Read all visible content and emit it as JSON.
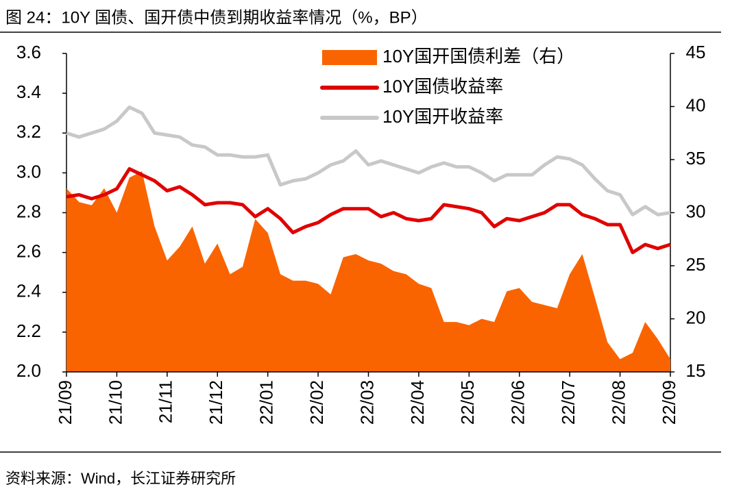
{
  "chart_data": {
    "type": "area-line",
    "title": "图 24：10Y 国债、国开债中债到期收益率情况（%，BP）",
    "source": "资料来源：Wind，长江证券研究所",
    "categories": [
      "21/09",
      null,
      null,
      null,
      "21/10",
      null,
      null,
      null,
      "21/11",
      null,
      null,
      null,
      "21/12",
      null,
      null,
      null,
      "22/01",
      null,
      null,
      null,
      "22/02",
      null,
      null,
      null,
      "22/03",
      null,
      null,
      null,
      "22/04",
      null,
      null,
      null,
      "22/05",
      null,
      null,
      null,
      "22/06",
      null,
      null,
      null,
      "22/07",
      null,
      null,
      null,
      "22/08",
      null,
      null,
      null,
      "22/09"
    ],
    "series": [
      {
        "name": "10Y国开国债利差（右）",
        "type": "area",
        "axis": "y2",
        "color": "#f96400",
        "values": [
          32.3,
          31.0,
          30.7,
          32.3,
          30.0,
          33.3,
          33.9,
          28.7,
          25.5,
          26.8,
          28.7,
          25.2,
          27.1,
          24.2,
          24.9,
          29.4,
          28.1,
          24.2,
          23.6,
          23.6,
          23.3,
          22.3,
          25.8,
          26.1,
          25.5,
          25.2,
          24.5,
          24.2,
          23.3,
          22.9,
          19.7,
          19.7,
          19.4,
          20.0,
          19.7,
          22.6,
          22.9,
          21.6,
          21.3,
          21.0,
          24.2,
          26.1,
          22.0,
          17.8,
          16.2,
          16.8,
          19.7,
          18.1,
          16.2
        ]
      },
      {
        "name": "10Y国债收益率",
        "type": "line",
        "color": "#e00000",
        "values": [
          2.88,
          2.89,
          2.87,
          2.89,
          2.92,
          3.02,
          2.99,
          2.96,
          2.91,
          2.93,
          2.89,
          2.84,
          2.85,
          2.85,
          2.84,
          2.78,
          2.82,
          2.77,
          2.7,
          2.73,
          2.75,
          2.79,
          2.82,
          2.82,
          2.82,
          2.78,
          2.8,
          2.77,
          2.76,
          2.77,
          2.84,
          2.83,
          2.82,
          2.8,
          2.73,
          2.77,
          2.76,
          2.78,
          2.8,
          2.84,
          2.84,
          2.79,
          2.77,
          2.74,
          2.74,
          2.6,
          2.64,
          2.62,
          2.64
        ]
      },
      {
        "name": "10Y国开收益率",
        "type": "line",
        "color": "#c8c8c8",
        "values": [
          3.2,
          3.18,
          3.2,
          3.22,
          3.26,
          3.33,
          3.3,
          3.2,
          3.19,
          3.18,
          3.14,
          3.13,
          3.09,
          3.09,
          3.08,
          3.08,
          3.09,
          2.94,
          2.96,
          2.97,
          3.0,
          3.04,
          3.06,
          3.11,
          3.04,
          3.06,
          3.04,
          3.02,
          3.0,
          3.03,
          3.05,
          3.03,
          3.03,
          3.0,
          2.96,
          2.99,
          2.99,
          2.99,
          3.04,
          3.08,
          3.07,
          3.04,
          2.97,
          2.91,
          2.89,
          2.79,
          2.83,
          2.79,
          2.8
        ]
      }
    ],
    "ylim": [
      2.0,
      3.6
    ],
    "yticks": [
      {
        "value": 2,
        "label": "2.0"
      },
      2.2,
      2.4,
      2.6,
      2.8,
      {
        "value": 3,
        "label": "3.0"
      },
      3.2,
      3.4,
      3.6
    ],
    "y2lim": [
      15,
      45
    ],
    "y2ticks": [
      15,
      20,
      25,
      30,
      35,
      40,
      45
    ],
    "legend": "top-right"
  }
}
